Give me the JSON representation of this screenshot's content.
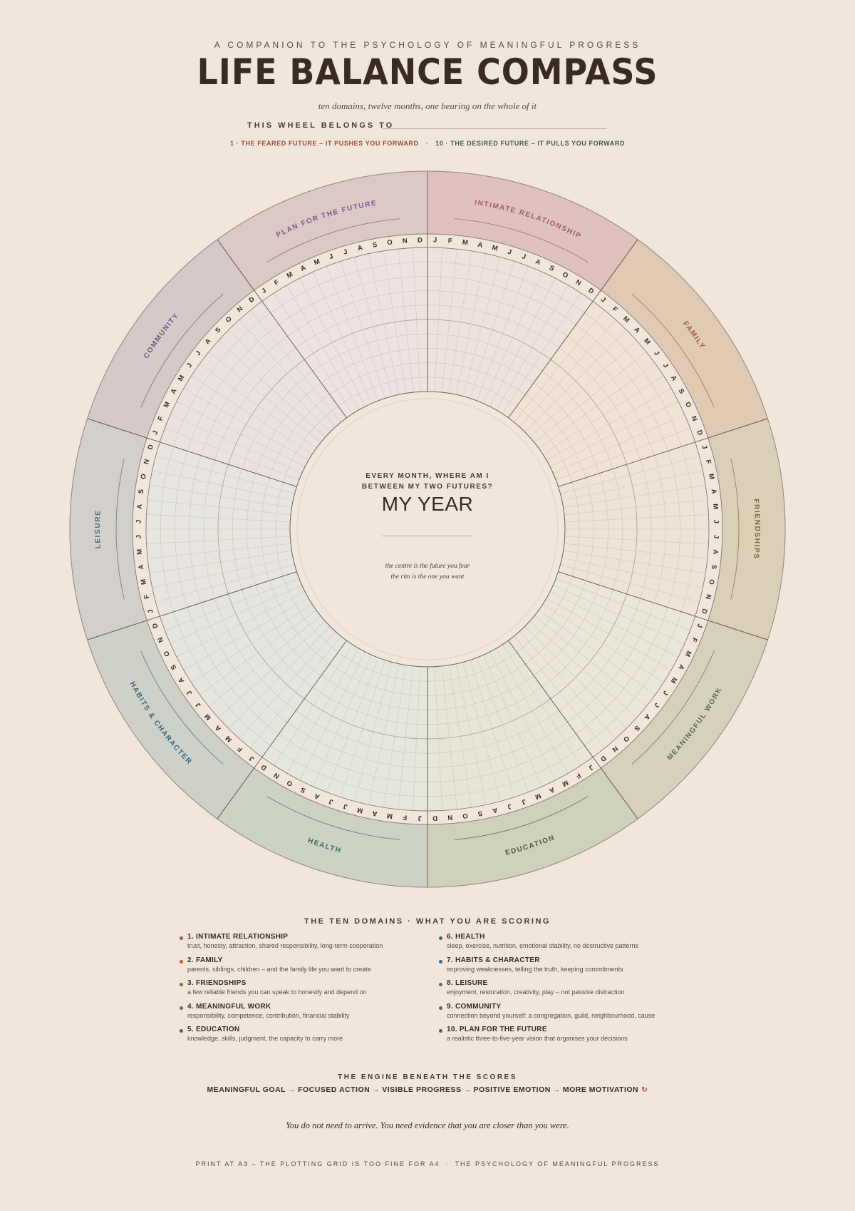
{
  "header": {
    "kicker": "A COMPANION TO THE PSYCHOLOGY OF MEANINGFUL PROGRESS",
    "title": "LIFE BALANCE COMPASS",
    "subtitle": "ten domains, twelve months, one bearing on the whole of it",
    "owner_label": "THIS WHEEL BELONGS TO",
    "scale_low": "1 · THE FEARED FUTURE – IT PUSHES YOU FORWARD",
    "scale_sep": "·",
    "scale_high": "10 · THE DESIRED FUTURE – IT PULLS YOU FORWARD"
  },
  "wheel": {
    "months": [
      "J",
      "F",
      "M",
      "A",
      "M",
      "J",
      "J",
      "A",
      "S",
      "O",
      "N",
      "D"
    ],
    "segments": [
      {
        "label": "INTIMATE RELATIONSHIP",
        "fill": "#dfc2bd",
        "grid": "#efe2dc",
        "text": "#9b5a6a"
      },
      {
        "label": "FAMILY",
        "fill": "#e0cab4",
        "grid": "#f0e3d4",
        "text": "#9c5a3a"
      },
      {
        "label": "FRIENDSHIPS",
        "fill": "#dccfb8",
        "grid": "#ede4d6",
        "text": "#7c6a3a"
      },
      {
        "label": "MEANINGFUL WORK",
        "fill": "#d6d1ba",
        "grid": "#eae6d8",
        "text": "#5c6a4a"
      },
      {
        "label": "EDUCATION",
        "fill": "#d0d1ba",
        "grid": "#e6e6d6",
        "text": "#4a5a3a"
      },
      {
        "label": "HEALTH",
        "fill": "#ccd2c4",
        "grid": "#e4e7dc",
        "text": "#3e6a6a"
      },
      {
        "label": "HABITS & CHARACTER",
        "fill": "#cdd1c8",
        "grid": "#e4e5df",
        "text": "#3e6478"
      },
      {
        "label": "LEISURE",
        "fill": "#d3d0cb",
        "grid": "#e7e5e0",
        "text": "#4e6a7a"
      },
      {
        "label": "COMMUNITY",
        "fill": "#d6c9c8",
        "grid": "#ebe2e0",
        "text": "#6a5a7a"
      },
      {
        "label": "PLAN FOR THE FUTURE",
        "fill": "#dcc8c4",
        "grid": "#eee3e1",
        "text": "#7a5a8a"
      }
    ],
    "center_question_1": "EVERY MONTH, WHERE AM I",
    "center_question_2": "BETWEEN MY TWO FUTURES?",
    "center_title": "MY YEAR",
    "center_note_1": "the centre is the future you fear",
    "center_note_2": "the rim is the one you want"
  },
  "domains": {
    "heading": "THE TEN DOMAINS · WHAT YOU ARE SCORING",
    "left": [
      {
        "name": "1. INTIMATE RELATIONSHIP",
        "desc": "trust, honesty, attraction, shared responsibility, long-term cooperation",
        "color": "#9b5a5a"
      },
      {
        "name": "2. FAMILY",
        "desc": "parents, siblings, children – and the family life you want to create",
        "color": "#b0603a"
      },
      {
        "name": "3. FRIENDSHIPS",
        "desc": "a few reliable friends you can speak to honestly and depend on",
        "color": "#8a6a2a"
      },
      {
        "name": "4. MEANINGFUL WORK",
        "desc": "responsibility, competence, contribution, financial stability",
        "color": "#6a6a3a"
      },
      {
        "name": "5. EDUCATION",
        "desc": "knowledge, skills, judgment, the capacity to carry more",
        "color": "#4a6a3a"
      }
    ],
    "right": [
      {
        "name": "6. HEALTH",
        "desc": "sleep, exercise, nutrition, emotional stability, no destructive patterns",
        "color": "#3a6a6a"
      },
      {
        "name": "7. HABITS & CHARACTER",
        "desc": "improving weaknesses, telling the truth, keeping commitments",
        "color": "#3a6a7a"
      },
      {
        "name": "8. LEISURE",
        "desc": "enjoyment, restoration, creativity, play – not passive distraction",
        "color": "#4a7080"
      },
      {
        "name": "9. COMMUNITY",
        "desc": "connection beyond yourself: a congregation, guild, neighbourhood, cause",
        "color": "#5a5a7a"
      },
      {
        "name": "10. PLAN FOR THE FUTURE",
        "desc": "a realistic three-to-five-year vision that organises your decisions",
        "color": "#7a4a7a"
      }
    ]
  },
  "engine": {
    "heading": "THE ENGINE BENEATH THE SCORES",
    "steps": [
      "MEANINGFUL GOAL",
      "FOCUSED ACTION",
      "VISIBLE PROGRESS",
      "POSITIVE EMOTION",
      "MORE MOTIVATION"
    ],
    "arrow": "→",
    "loop": "↻"
  },
  "quote": "You do not need to arrive. You need evidence that you are closer than you were.",
  "footer": {
    "left": "PRINT AT A3 – THE PLOTTING GRID IS TOO FINE FOR A4",
    "sep": "·",
    "right": "THE PSYCHOLOGY OF MEANINGFUL PROGRESS"
  }
}
